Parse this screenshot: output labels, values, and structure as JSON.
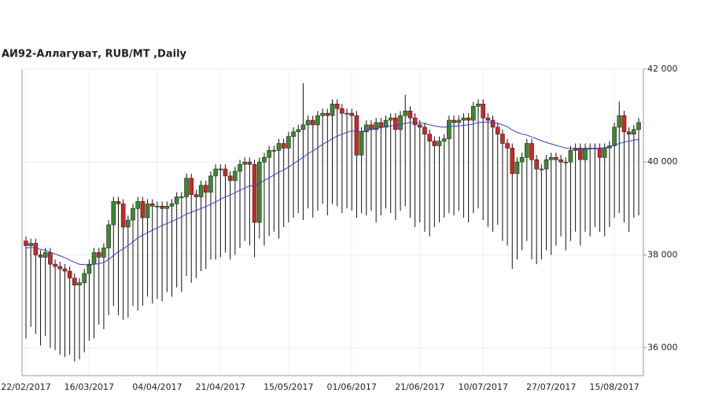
{
  "chart_data": {
    "type": "candlestick",
    "title": "АИ92-Аллагуват,  RUB/MT ,Daily",
    "categories": [
      "22/02/2017",
      null,
      null,
      null,
      null,
      null,
      null,
      null,
      null,
      null,
      null,
      null,
      null,
      "16/03/2017",
      null,
      null,
      null,
      null,
      null,
      null,
      null,
      null,
      null,
      null,
      null,
      null,
      null,
      "04/04/2017",
      null,
      null,
      null,
      null,
      null,
      null,
      null,
      null,
      null,
      null,
      null,
      null,
      "21/04/2017",
      null,
      null,
      null,
      null,
      null,
      null,
      null,
      null,
      null,
      null,
      null,
      null,
      null,
      "15/05/2017",
      null,
      null,
      null,
      null,
      null,
      null,
      null,
      null,
      null,
      null,
      null,
      null,
      "01/06/2017",
      null,
      null,
      null,
      null,
      null,
      null,
      null,
      null,
      null,
      null,
      null,
      null,
      null,
      "21/06/2017",
      null,
      null,
      null,
      null,
      null,
      null,
      null,
      null,
      null,
      null,
      null,
      null,
      "10/07/2017",
      null,
      null,
      null,
      null,
      null,
      null,
      null,
      null,
      null,
      null,
      null,
      null,
      null,
      "27/07/2017",
      null,
      null,
      null,
      null,
      null,
      null,
      null,
      null,
      null,
      null,
      null,
      null,
      "15/08/2017",
      null,
      null,
      null,
      null,
      null
    ],
    "open": [
      38300,
      38200,
      38250,
      38000,
      37950,
      38050,
      37800,
      37750,
      37700,
      37650,
      37500,
      37350,
      37400,
      37600,
      37800,
      38050,
      37950,
      38150,
      38650,
      39150,
      39100,
      38600,
      38750,
      39000,
      39150,
      38800,
      39100,
      39050,
      39050,
      39000,
      39050,
      39100,
      39250,
      39250,
      39650,
      39300,
      39250,
      39500,
      39350,
      39700,
      39850,
      39850,
      39700,
      39600,
      39800,
      39950,
      40000,
      39950,
      38700,
      40000,
      40100,
      40250,
      40250,
      40400,
      40300,
      40550,
      40650,
      40700,
      40800,
      40900,
      40800,
      41000,
      41050,
      41000,
      41250,
      41150,
      41050,
      41050,
      41000,
      40150,
      40650,
      40800,
      40700,
      40850,
      40750,
      40900,
      40950,
      40700,
      41000,
      41100,
      40950,
      40800,
      40750,
      40600,
      40450,
      40350,
      40450,
      40500,
      40900,
      40850,
      40900,
      40950,
      40900,
      41200,
      41250,
      40950,
      40900,
      40750,
      40600,
      40400,
      40300,
      39750,
      40000,
      40100,
      40400,
      40050,
      39850,
      39850,
      40050,
      40100,
      40050,
      40000,
      40000,
      40250,
      40300,
      40050,
      40300,
      40300,
      40300,
      40100,
      40300,
      40350,
      40750,
      41000,
      40650,
      40600,
      40700
    ],
    "high": [
      38400,
      38350,
      38350,
      38100,
      38150,
      38150,
      37900,
      37850,
      37800,
      37750,
      37600,
      37500,
      37700,
      37900,
      38150,
      38150,
      38250,
      38750,
      39250,
      39250,
      39200,
      38850,
      39100,
      39250,
      39250,
      39200,
      39200,
      39150,
      39150,
      39150,
      39200,
      39350,
      39350,
      39750,
      39750,
      39400,
      39600,
      39600,
      39800,
      39950,
      39950,
      39950,
      39800,
      39900,
      40050,
      40100,
      40100,
      40050,
      40100,
      40200,
      40350,
      40350,
      40500,
      40500,
      40650,
      40750,
      40800,
      41700,
      41000,
      41000,
      41100,
      41150,
      41150,
      41350,
      41350,
      41250,
      41150,
      41150,
      41100,
      40750,
      40900,
      40900,
      40950,
      40950,
      41000,
      41050,
      41050,
      41100,
      41450,
      41200,
      41050,
      40900,
      40850,
      40700,
      40550,
      40550,
      40600,
      41000,
      41000,
      41000,
      41050,
      41050,
      41300,
      41350,
      41350,
      41050,
      41000,
      40850,
      40700,
      40500,
      40400,
      40100,
      40200,
      40500,
      40500,
      40150,
      39950,
      40150,
      40200,
      40200,
      40150,
      40100,
      40350,
      40400,
      40400,
      40400,
      40400,
      40400,
      40400,
      40400,
      40450,
      40850,
      41300,
      41100,
      40750,
      40800,
      40950
    ],
    "low": [
      36200,
      36450,
      36300,
      36050,
      36250,
      36000,
      35950,
      35850,
      35800,
      35850,
      35700,
      35750,
      35900,
      36150,
      36200,
      36500,
      36400,
      36700,
      36900,
      36700,
      36600,
      36650,
      36900,
      36800,
      36900,
      37100,
      36950,
      37050,
      37000,
      37200,
      37100,
      37300,
      37200,
      37550,
      37400,
      37500,
      37650,
      37700,
      37900,
      37900,
      37950,
      38050,
      37900,
      38000,
      38150,
      38300,
      38200,
      37950,
      38350,
      38200,
      38400,
      38500,
      38350,
      38600,
      38700,
      38800,
      38900,
      38750,
      39000,
      38800,
      38950,
      39100,
      38850,
      39100,
      39050,
      38900,
      39000,
      38950,
      38800,
      38900,
      38850,
      38950,
      38700,
      38850,
      39000,
      38900,
      38750,
      38950,
      39050,
      38800,
      38600,
      38700,
      38500,
      38400,
      38600,
      38700,
      38800,
      38900,
      38850,
      38950,
      38800,
      38700,
      38900,
      39000,
      38750,
      38600,
      38500,
      38650,
      38300,
      38200,
      37700,
      37900,
      38100,
      38300,
      37900,
      37800,
      37900,
      38100,
      38000,
      38200,
      38400,
      38100,
      38300,
      38500,
      38200,
      38500,
      38400,
      38600,
      38500,
      38400,
      38600,
      38800,
      38900,
      38700,
      38500,
      38800,
      38850
    ],
    "close": [
      38200,
      38250,
      38000,
      37950,
      38050,
      37800,
      37750,
      37700,
      37650,
      37500,
      37350,
      37400,
      37600,
      37800,
      38050,
      37950,
      38150,
      38650,
      39150,
      39100,
      38600,
      38750,
      39000,
      39150,
      38800,
      39100,
      39050,
      39050,
      39000,
      39050,
      39100,
      39250,
      39250,
      39650,
      39300,
      39250,
      39500,
      39350,
      39700,
      39850,
      39850,
      39700,
      39600,
      39800,
      39950,
      40000,
      39950,
      38700,
      40000,
      40100,
      40250,
      40250,
      40400,
      40300,
      40550,
      40650,
      40700,
      40800,
      40900,
      40800,
      41000,
      41050,
      41000,
      41250,
      41150,
      41050,
      41050,
      41000,
      40150,
      40650,
      40800,
      40700,
      40850,
      40750,
      40900,
      40950,
      40700,
      41000,
      41100,
      40950,
      40800,
      40750,
      40600,
      40450,
      40350,
      40450,
      40500,
      40900,
      40850,
      40900,
      40950,
      40900,
      41200,
      41250,
      40950,
      40900,
      40750,
      40600,
      40400,
      40300,
      39750,
      40000,
      40100,
      40400,
      40050,
      39850,
      39850,
      40050,
      40100,
      40050,
      40000,
      40000,
      40250,
      40300,
      40050,
      40300,
      40300,
      40300,
      40100,
      40300,
      40350,
      40750,
      41000,
      40650,
      40600,
      40700,
      40850
    ],
    "up_color": "#3c8a2e",
    "down_color": "#d42424",
    "moving_average": {
      "color": "#3c3ccc",
      "values": [
        38150,
        38160,
        38150,
        38120,
        38100,
        38060,
        38020,
        37980,
        37940,
        37890,
        37840,
        37800,
        37790,
        37780,
        37800,
        37810,
        37840,
        37900,
        37990,
        38070,
        38130,
        38200,
        38280,
        38370,
        38420,
        38480,
        38530,
        38580,
        38630,
        38680,
        38720,
        38770,
        38820,
        38880,
        38920,
        38960,
        39000,
        39040,
        39090,
        39140,
        39200,
        39250,
        39290,
        39340,
        39390,
        39440,
        39490,
        39480,
        39540,
        39600,
        39660,
        39720,
        39780,
        39830,
        39890,
        39960,
        40030,
        40100,
        40180,
        40240,
        40310,
        40380,
        40440,
        40500,
        40560,
        40600,
        40640,
        40670,
        40650,
        40660,
        40680,
        40700,
        40720,
        40740,
        40760,
        40780,
        40790,
        40810,
        40830,
        40850,
        40850,
        40840,
        40830,
        40800,
        40780,
        40760,
        40750,
        40760,
        40770,
        40780,
        40790,
        40800,
        40820,
        40850,
        40860,
        40860,
        40850,
        40830,
        40800,
        40760,
        40690,
        40640,
        40600,
        40580,
        40540,
        40500,
        40460,
        40420,
        40390,
        40360,
        40330,
        40300,
        40290,
        40280,
        40270,
        40270,
        40280,
        40290,
        40300,
        40310,
        40330,
        40360,
        40400,
        40430,
        40450,
        40470,
        40490
      ]
    },
    "ylim": [
      35400,
      42000
    ],
    "yticks": [
      {
        "value": 36000,
        "label": "36 000"
      },
      {
        "value": 38000,
        "label": "38 000"
      },
      {
        "value": 40000,
        "label": "40 000"
      },
      {
        "value": 42000,
        "label": "42 000"
      }
    ],
    "grid": true
  }
}
